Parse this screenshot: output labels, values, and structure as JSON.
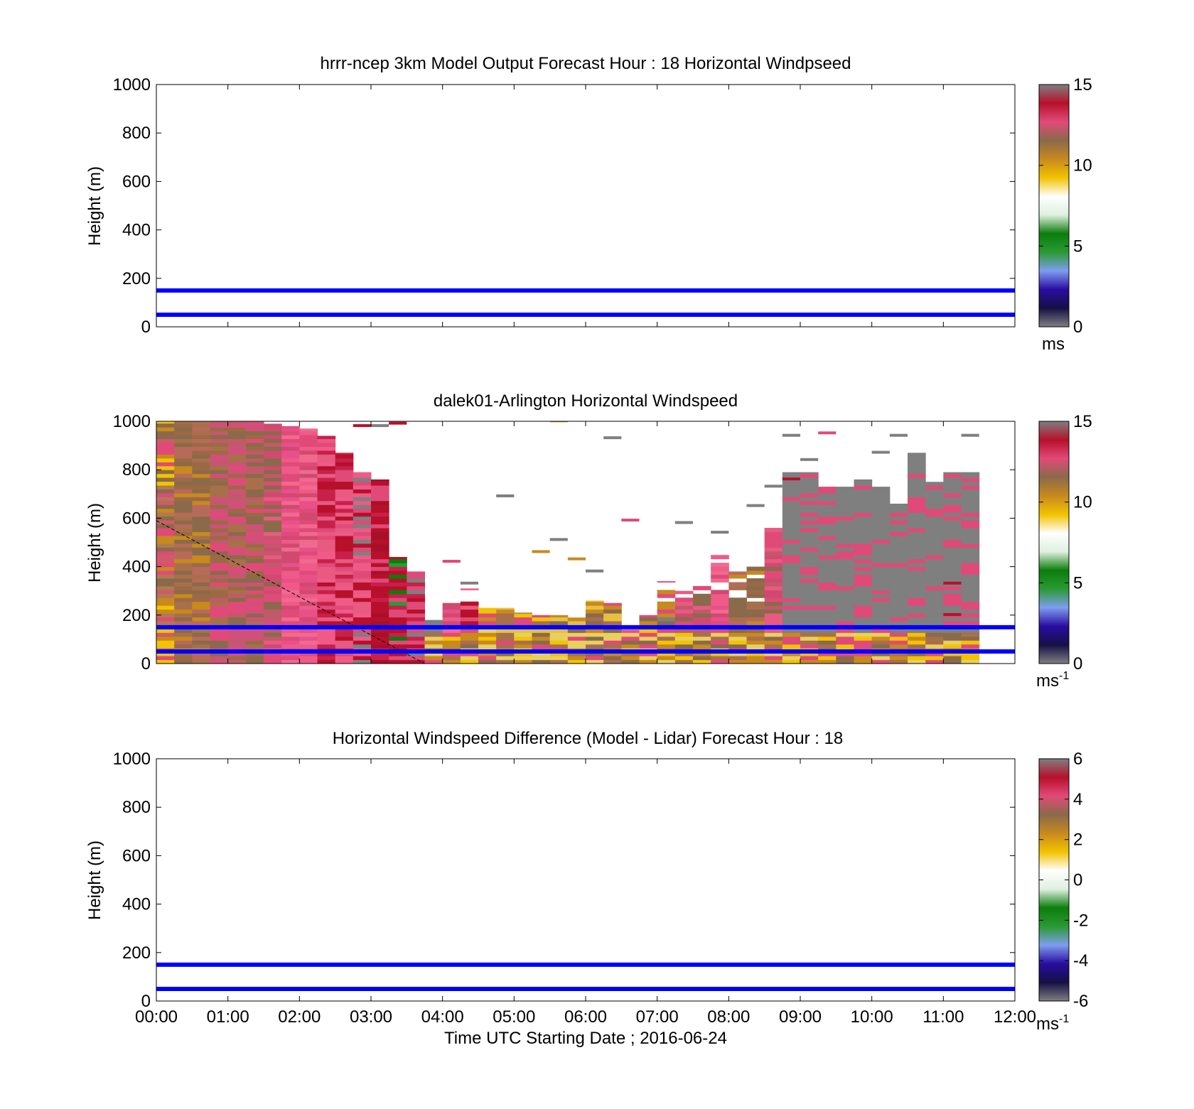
{
  "chart_data": [
    {
      "type": "heatmap",
      "title": "hrrr-ncep 3km Model Output   Forecast Hour : 18 Horizontal Windpseed",
      "ylabel": "Height (m)",
      "xlabel": "",
      "ylim": [
        0,
        1000
      ],
      "yticks": [
        "0",
        "200",
        "400",
        "600",
        "800",
        "1000"
      ],
      "xticks": [
        "00:00",
        "01:00",
        "02:00",
        "03:00",
        "04:00",
        "05:00",
        "06:00",
        "07:00",
        "08:00",
        "09:00",
        "10:00",
        "11:00",
        "12:00"
      ],
      "show_xtick_labels": false,
      "colorbar": {
        "min": 0,
        "max": 15,
        "ticks": [
          "0",
          "5",
          "10",
          "15"
        ],
        "unit": "ms",
        "unit_sup": "",
        "colors": [
          "#7f7f7f",
          "#141046",
          "#2a0ca0",
          "#7f9df0",
          "#2a9a33",
          "#0b7d0b",
          "#dff0df",
          "#ffffff",
          "#f2c300",
          "#c8891e",
          "#8a6a4a",
          "#e04a78",
          "#b8102a",
          "#7f7f7f"
        ]
      },
      "reference_lines": [
        {
          "height": 150,
          "color": "#0000ff"
        },
        {
          "height": 50,
          "color": "#0000ff"
        }
      ],
      "data": "none"
    },
    {
      "type": "heatmap",
      "title": "dalek01-Arlington  Horizontal Windspeed",
      "ylabel": "Height (m)",
      "xlabel": "",
      "ylim": [
        0,
        1000
      ],
      "yticks": [
        "0",
        "200",
        "400",
        "600",
        "800",
        "1000"
      ],
      "xticks": [
        "00:00",
        "01:00",
        "02:00",
        "03:00",
        "04:00",
        "05:00",
        "06:00",
        "07:00",
        "08:00",
        "09:00",
        "10:00",
        "11:00",
        "12:00"
      ],
      "show_xtick_labels": false,
      "colorbar": {
        "min": 0,
        "max": 15,
        "ticks": [
          "0",
          "5",
          "10",
          "15"
        ],
        "unit": "ms",
        "unit_sup": "-1",
        "colors": [
          "#7f7f7f",
          "#141046",
          "#2a0ca0",
          "#7f9df0",
          "#2a9a33",
          "#0b7d0b",
          "#dff0df",
          "#ffffff",
          "#f2c300",
          "#c8891e",
          "#8a6a4a",
          "#e04a78",
          "#b8102a",
          "#7f7f7f"
        ]
      },
      "reference_lines": [
        {
          "height": 150,
          "color": "#0000ff"
        },
        {
          "height": 50,
          "color": "#0000ff"
        }
      ],
      "dashed_line": {
        "from": {
          "time_h": 0.0,
          "height": 590
        },
        "to": {
          "time_h": 3.75,
          "height": 0
        }
      },
      "columns_time_step_h": 0.25,
      "columns": [
        {
          "t": 0.0,
          "top": 1000,
          "palette": "mix"
        },
        {
          "t": 0.25,
          "top": 1000,
          "palette": "brown"
        },
        {
          "t": 0.5,
          "top": 1000,
          "palette": "brown"
        },
        {
          "t": 0.75,
          "top": 1000,
          "palette": "brownpink"
        },
        {
          "t": 1.0,
          "top": 1000,
          "palette": "brownpink"
        },
        {
          "t": 1.25,
          "top": 1000,
          "palette": "brownpink"
        },
        {
          "t": 1.5,
          "top": 990,
          "palette": "pinkbrown"
        },
        {
          "t": 1.75,
          "top": 980,
          "palette": "pink"
        },
        {
          "t": 2.0,
          "top": 970,
          "palette": "pink"
        },
        {
          "t": 2.25,
          "top": 940,
          "palette": "pinkred"
        },
        {
          "t": 2.5,
          "top": 870,
          "palette": "pinkred"
        },
        {
          "t": 2.75,
          "top": 790,
          "palette": "pinkgray"
        },
        {
          "t": 3.0,
          "top": 760,
          "palette": "red"
        },
        {
          "t": 3.25,
          "top": 440,
          "palette": "redgreen"
        },
        {
          "t": 3.5,
          "top": 380,
          "palette": "redpink"
        },
        {
          "t": 3.75,
          "top": 180,
          "palette": "gray"
        },
        {
          "t": 4.0,
          "top": 250,
          "palette": "pink"
        },
        {
          "t": 4.25,
          "top": 310,
          "palette": "pinkgray"
        },
        {
          "t": 4.5,
          "top": 230,
          "palette": "yellow"
        },
        {
          "t": 4.75,
          "top": 230,
          "palette": "yellowbrown"
        },
        {
          "t": 5.0,
          "top": 210,
          "palette": "yellowbrown"
        },
        {
          "t": 5.25,
          "top": 200,
          "palette": "yellowbrown"
        },
        {
          "t": 5.5,
          "top": 200,
          "palette": "yellowbrown"
        },
        {
          "t": 5.75,
          "top": 190,
          "palette": "yellowbrown"
        },
        {
          "t": 6.0,
          "top": 260,
          "palette": "yellowbrown"
        },
        {
          "t": 6.25,
          "top": 250,
          "palette": "yellowbrown"
        },
        {
          "t": 6.5,
          "top": 140,
          "palette": "pink"
        },
        {
          "t": 6.75,
          "top": 200,
          "palette": "yellowbrown"
        },
        {
          "t": 7.0,
          "top": 340,
          "palette": "graybrown"
        },
        {
          "t": 7.25,
          "top": 300,
          "palette": "pinkbrown"
        },
        {
          "t": 7.5,
          "top": 330,
          "palette": "pinkbrown"
        },
        {
          "t": 7.75,
          "top": 480,
          "palette": "pink"
        },
        {
          "t": 8.0,
          "top": 380,
          "palette": "brown"
        },
        {
          "t": 8.25,
          "top": 400,
          "palette": "brown"
        },
        {
          "t": 8.5,
          "top": 560,
          "palette": "pinkbrown"
        },
        {
          "t": 8.75,
          "top": 790,
          "palette": "gray"
        },
        {
          "t": 9.0,
          "top": 790,
          "palette": "gray"
        },
        {
          "t": 9.25,
          "top": 730,
          "palette": "gray"
        },
        {
          "t": 9.5,
          "top": 730,
          "palette": "gray"
        },
        {
          "t": 9.75,
          "top": 760,
          "palette": "gray"
        },
        {
          "t": 10.0,
          "top": 730,
          "palette": "gray"
        },
        {
          "t": 10.25,
          "top": 660,
          "palette": "gray"
        },
        {
          "t": 10.5,
          "top": 870,
          "palette": "gray"
        },
        {
          "t": 10.75,
          "top": 750,
          "palette": "gray"
        },
        {
          "t": 11.0,
          "top": 790,
          "palette": "gray"
        },
        {
          "t": 11.25,
          "top": 790,
          "palette": "gray"
        }
      ]
    },
    {
      "type": "heatmap",
      "title": "Horizontal Windspeed Difference (Model - Lidar) Forecast Hour : 18",
      "ylabel": "Height (m)",
      "xlabel": "Time UTC  Starting Date ; 2016-06-24",
      "ylim": [
        0,
        1000
      ],
      "yticks": [
        "0",
        "200",
        "400",
        "600",
        "800",
        "1000"
      ],
      "xticks": [
        "00:00",
        "01:00",
        "02:00",
        "03:00",
        "04:00",
        "05:00",
        "06:00",
        "07:00",
        "08:00",
        "09:00",
        "10:00",
        "11:00",
        "12:00"
      ],
      "show_xtick_labels": true,
      "colorbar": {
        "min": -6,
        "max": 6,
        "ticks": [
          "-6",
          "-4",
          "-2",
          "0",
          "2",
          "4",
          "6"
        ],
        "unit": "ms",
        "unit_sup": "-1",
        "colors": [
          "#7f7f7f",
          "#141046",
          "#2a0ca0",
          "#7f9df0",
          "#2a9a33",
          "#0b7d0b",
          "#dff0df",
          "#ffffff",
          "#f2c300",
          "#c8891e",
          "#8a6a4a",
          "#e04a78",
          "#b8102a",
          "#7f7f7f"
        ]
      },
      "reference_lines": [
        {
          "height": 150,
          "color": "#0000ff"
        },
        {
          "height": 50,
          "color": "#0000ff"
        }
      ],
      "data": "none"
    }
  ]
}
